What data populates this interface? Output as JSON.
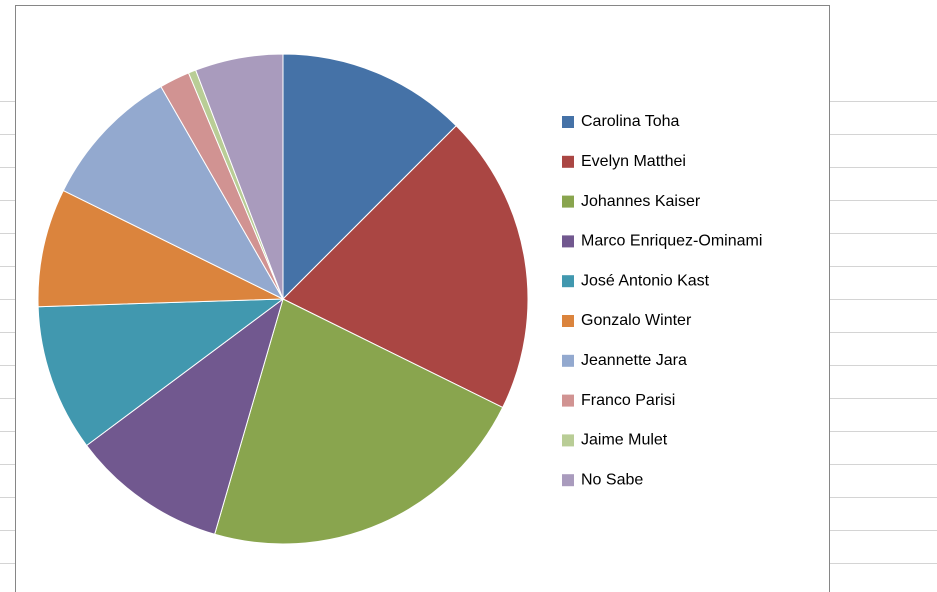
{
  "chart_data": {
    "type": "pie",
    "categories": [
      "Carolina Toha",
      "Evelyn Matthei",
      "Johannes Kaiser",
      "Marco Enriquez-Ominami",
      "José Antonio Kast",
      "Gonzalo Winter",
      "Jeannette Jara",
      "Franco Parisi",
      "Jaime Mulet",
      "No Sabe"
    ],
    "values": [
      12.5,
      19.8,
      22.2,
      10.3,
      9.7,
      7.8,
      9.4,
      2.0,
      0.5,
      5.8
    ],
    "colors": [
      "#4572A7",
      "#AA4643",
      "#89A54E",
      "#71588F",
      "#4198AF",
      "#DB843D",
      "#93A9CF",
      "#D19392",
      "#B9CD96",
      "#A99BBD"
    ],
    "legend": "right"
  }
}
